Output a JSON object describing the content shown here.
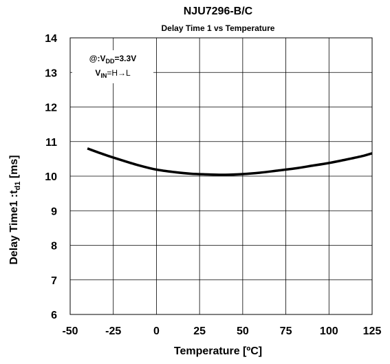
{
  "chart_data": {
    "type": "line",
    "title": "NJU7296-B/C",
    "subtitle": "Delay Time 1 vs Temperature",
    "xlabel": "Temperature  [ºC]",
    "ylabel": {
      "main": "Delay Time1 :t",
      "sub": "d1",
      "unit": " [ms]"
    },
    "xlim": [
      -50,
      125
    ],
    "ylim": [
      6,
      14
    ],
    "xticks": [
      -50,
      -25,
      0,
      25,
      50,
      75,
      100,
      125
    ],
    "yticks": [
      6,
      7,
      8,
      9,
      10,
      11,
      12,
      13,
      14
    ],
    "grid": true,
    "annotation": {
      "line1": {
        "prefix": "@:V",
        "sub": "DD",
        "suffix": "=3.3V"
      },
      "line2": {
        "prefix": "V",
        "sub": "IN",
        "suffix": "=H→L"
      }
    },
    "series": [
      {
        "x": [
          -40,
          -30,
          -20,
          -10,
          0,
          10,
          20,
          30,
          40,
          50,
          60,
          70,
          80,
          90,
          100,
          110,
          120,
          125
        ],
        "y": [
          10.8,
          10.62,
          10.46,
          10.31,
          10.19,
          10.12,
          10.07,
          10.05,
          10.04,
          10.06,
          10.1,
          10.16,
          10.22,
          10.3,
          10.38,
          10.48,
          10.59,
          10.66
        ]
      }
    ]
  }
}
